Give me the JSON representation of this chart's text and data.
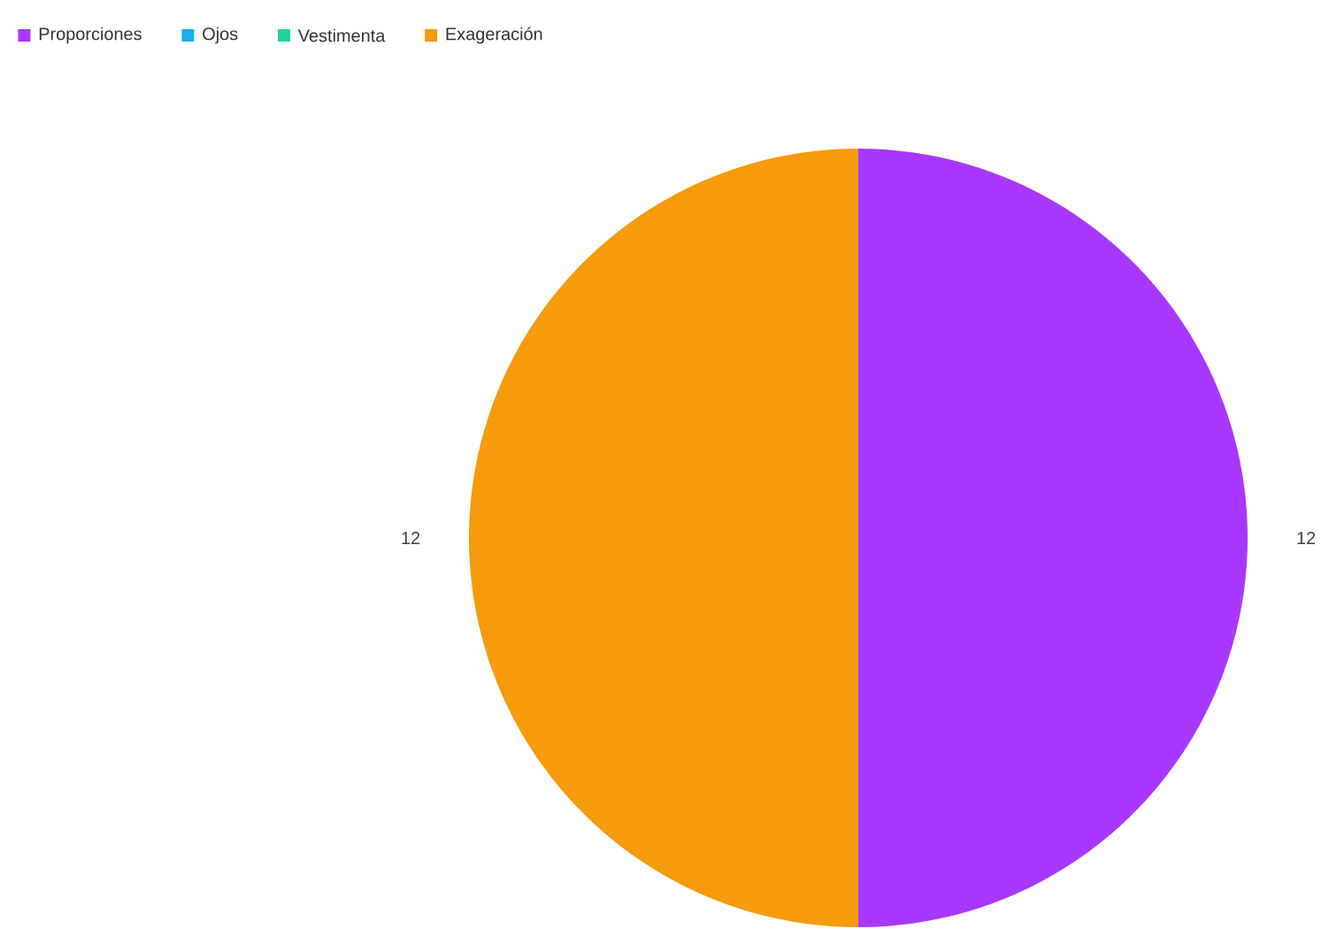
{
  "chart_data": {
    "type": "pie",
    "categories": [
      "Proporciones",
      "Ojos",
      "Vestimenta",
      "Exageración"
    ],
    "values": [
      12,
      0,
      0,
      12
    ],
    "colors": [
      "#a838ff",
      "#1ab0f0",
      "#22d3a0",
      "#f59b0c"
    ],
    "value_labels": [
      "12",
      null,
      null,
      "12"
    ],
    "legend": "top left"
  }
}
